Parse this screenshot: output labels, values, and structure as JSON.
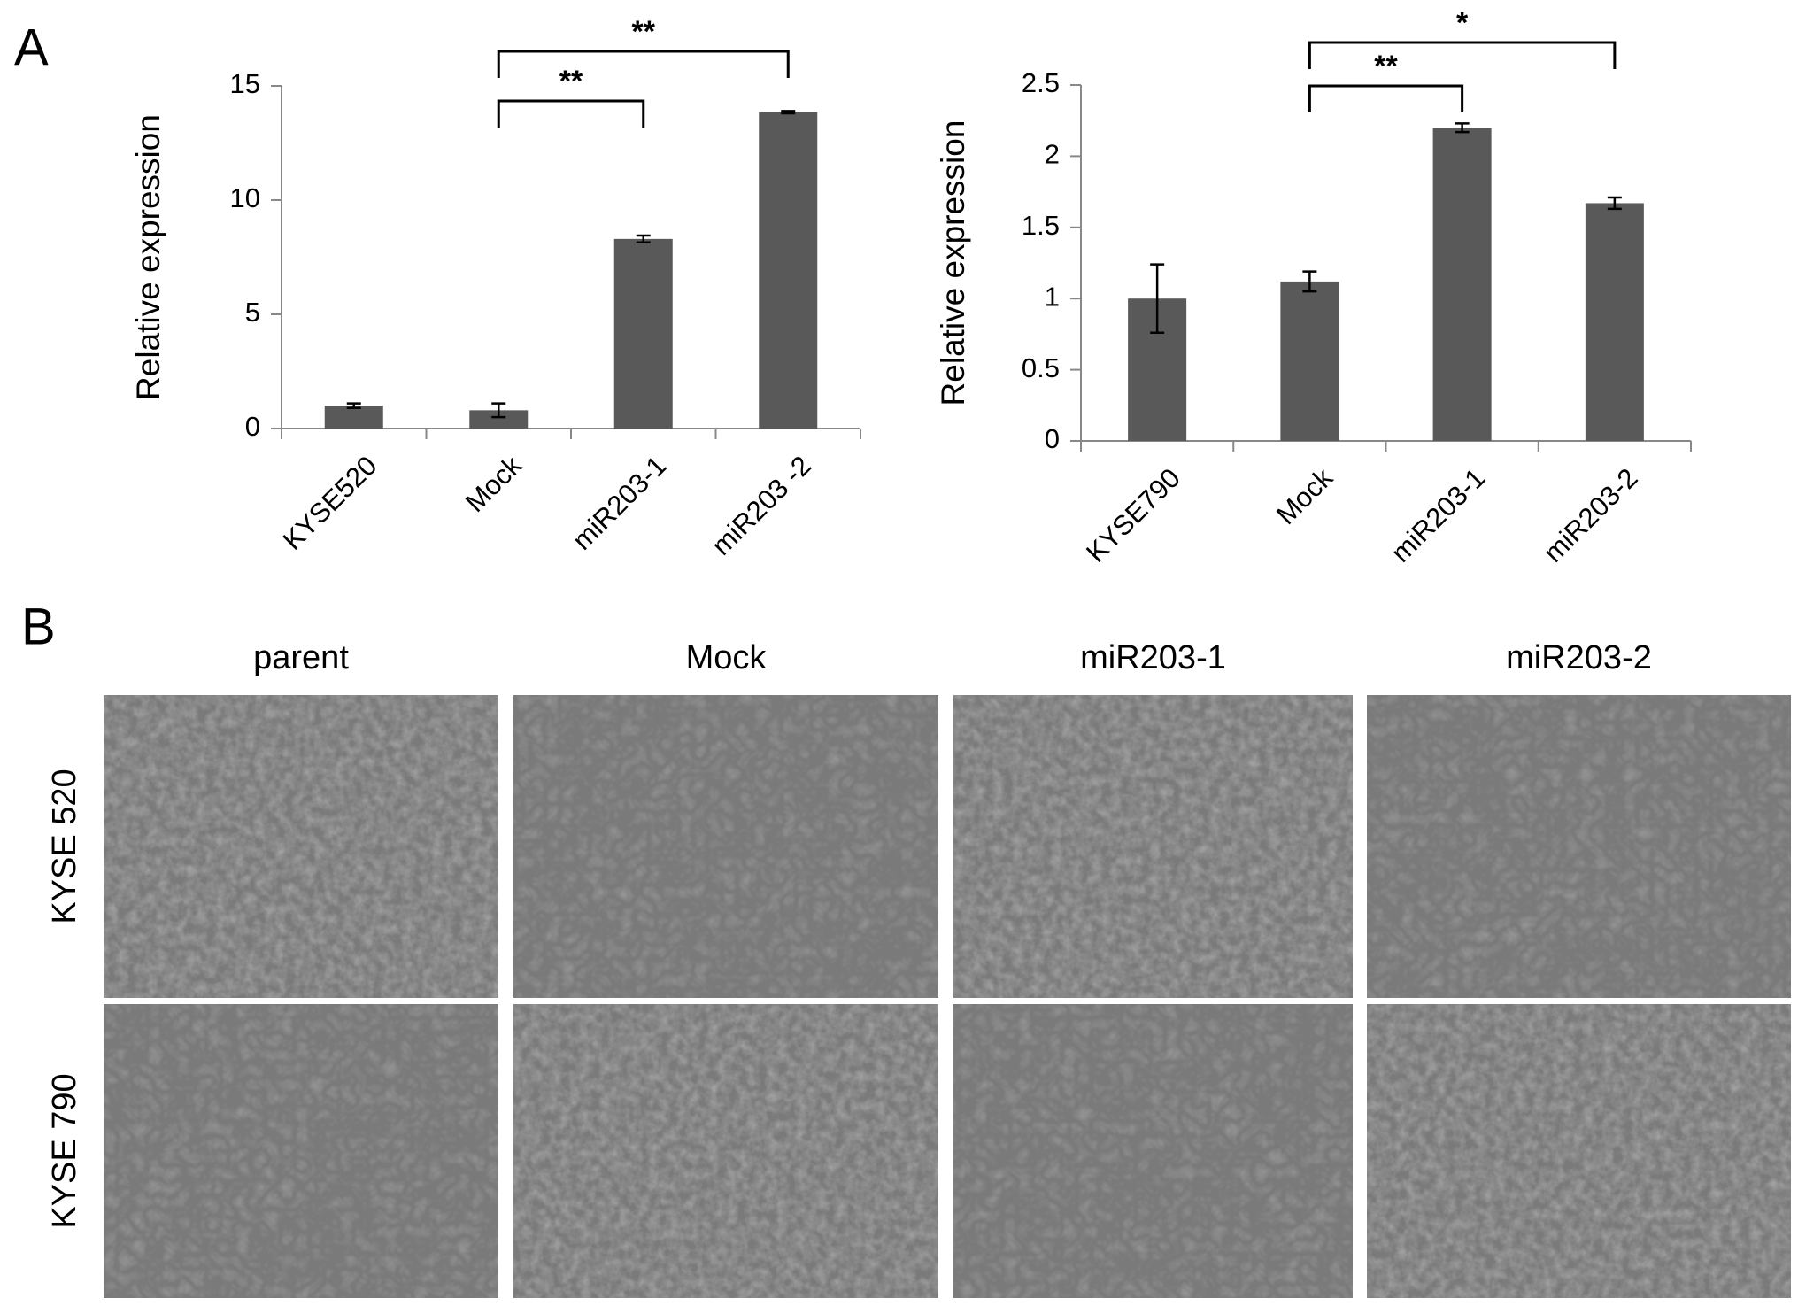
{
  "panels": [
    "A",
    "B"
  ],
  "chart_data": [
    {
      "type": "bar",
      "y_label": "Relative expression",
      "categories": [
        "KYSE520",
        "Mock",
        "miR203-1",
        "miR203 -2"
      ],
      "values": [
        1.0,
        0.8,
        8.3,
        13.85
      ],
      "error": [
        0.1,
        0.3,
        0.15,
        0.05
      ],
      "color": "#595959",
      "ylim": [
        0,
        15
      ],
      "yticks": [
        0,
        5,
        10,
        15
      ],
      "brackets": [
        {
          "between": [
            "Mock",
            "miR203-1"
          ],
          "label": "**"
        },
        {
          "between": [
            "Mock",
            "miR203 -2"
          ],
          "label": "**"
        }
      ]
    },
    {
      "type": "bar",
      "y_label": "Relative expression",
      "categories": [
        "KYSE790",
        "Mock",
        "miR203-1",
        "miR203-2"
      ],
      "values": [
        1.0,
        1.12,
        2.2,
        1.67
      ],
      "error": [
        0.24,
        0.07,
        0.03,
        0.04
      ],
      "color": "#595959",
      "ylim": [
        0,
        2.5
      ],
      "yticks": [
        0,
        0.5,
        1,
        1.5,
        2,
        2.5
      ],
      "brackets": [
        {
          "between": [
            "Mock",
            "miR203-1"
          ],
          "label": "**"
        },
        {
          "between": [
            "Mock",
            "miR203-2"
          ],
          "label": "*"
        }
      ]
    }
  ],
  "micrographs": {
    "columns": [
      "parent",
      "Mock",
      "miR203-1",
      "miR203-2"
    ],
    "rows": [
      "KYSE 520",
      "KYSE 790"
    ]
  }
}
